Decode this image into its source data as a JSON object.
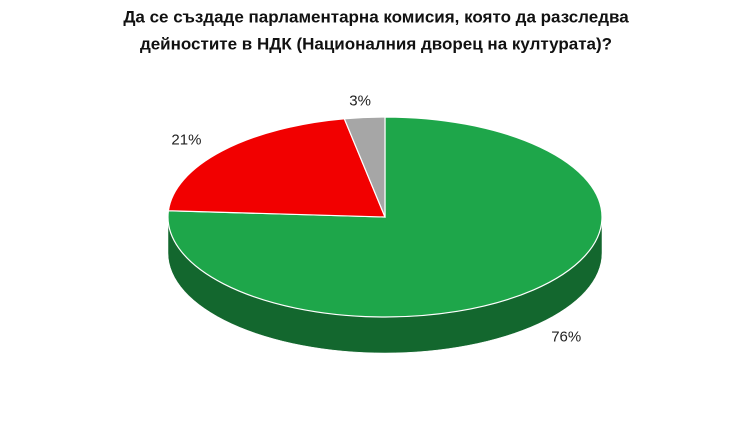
{
  "chart_data": {
    "type": "pie3d",
    "title": [
      "Да се създаде парламентарна комисия, която да разследва",
      "дейностите в НДК (Националния дворец на културата)?"
    ],
    "values": [
      76,
      21,
      3
    ],
    "value_labels": [
      "76%",
      "21%",
      "3%"
    ],
    "colors": [
      "#1ea64a",
      "#f20000",
      "#a6a6a6"
    ]
  }
}
